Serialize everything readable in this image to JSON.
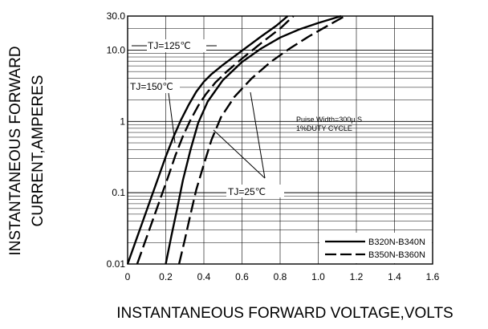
{
  "chart_data": {
    "type": "line",
    "title": "",
    "xlabel": "INSTANTANEOUS FORWARD VOLTAGE,VOLTS",
    "ylabel_lines": [
      "INSTANTANEOUS FORWARD",
      "CURRENT,AMPERES"
    ],
    "xlim": [
      0,
      1.6
    ],
    "ylim": [
      0.01,
      30
    ],
    "yscale": "log",
    "grid": true,
    "x_ticks": [
      "0",
      "0.2",
      "0.4",
      "0.6",
      "0.8",
      "1.0",
      "1.2",
      "1.4",
      "1.6"
    ],
    "y_ticks": [
      "0.01",
      "0.1",
      "1",
      "10.0",
      "30.0"
    ],
    "legend": {
      "placement": "bottom-right",
      "entries": [
        {
          "label": "B320N-B340N",
          "style": "solid"
        },
        {
          "label": "B350N-B360N",
          "style": "dashed"
        }
      ]
    },
    "annotations": {
      "t125": "TJ=125℃",
      "t150": "TJ=150℃",
      "t25": "TJ=25℃",
      "pulse_line1": "Puise Width=300μ S",
      "pulse_line2": "1%DUTY CYCLE"
    },
    "series": [
      {
        "group": "B320N-B340N",
        "condition": "TJ=150℃",
        "style": "solid",
        "points": [
          [
            0.0,
            0.01
          ],
          [
            0.04,
            0.02
          ],
          [
            0.08,
            0.04
          ],
          [
            0.12,
            0.08
          ],
          [
            0.16,
            0.16
          ],
          [
            0.2,
            0.32
          ],
          [
            0.24,
            0.6
          ],
          [
            0.28,
            1.05
          ],
          [
            0.32,
            1.7
          ],
          [
            0.36,
            2.6
          ],
          [
            0.4,
            3.6
          ],
          [
            0.44,
            4.6
          ],
          [
            0.5,
            6.2
          ],
          [
            0.6,
            9.8
          ],
          [
            0.7,
            15.5
          ],
          [
            0.78,
            22.0
          ],
          [
            0.84,
            30.0
          ]
        ]
      },
      {
        "group": "B350N-B360N",
        "condition": "TJ=150℃",
        "style": "dashed",
        "points": [
          [
            0.05,
            0.01
          ],
          [
            0.09,
            0.02
          ],
          [
            0.13,
            0.04
          ],
          [
            0.17,
            0.08
          ],
          [
            0.21,
            0.16
          ],
          [
            0.25,
            0.33
          ],
          [
            0.29,
            0.62
          ],
          [
            0.33,
            1.05
          ],
          [
            0.37,
            1.65
          ],
          [
            0.41,
            2.4
          ],
          [
            0.46,
            3.5
          ],
          [
            0.52,
            5.0
          ],
          [
            0.6,
            7.6
          ],
          [
            0.7,
            12.5
          ],
          [
            0.8,
            20.0
          ],
          [
            0.87,
            30.0
          ]
        ]
      },
      {
        "group": "B320N-B340N",
        "condition": "TJ=25℃",
        "style": "solid",
        "points": [
          [
            0.2,
            0.01
          ],
          [
            0.23,
            0.025
          ],
          [
            0.26,
            0.06
          ],
          [
            0.29,
            0.15
          ],
          [
            0.33,
            0.4
          ],
          [
            0.37,
            0.95
          ],
          [
            0.42,
            1.9
          ],
          [
            0.5,
            3.8
          ],
          [
            0.6,
            6.8
          ],
          [
            0.7,
            10.5
          ],
          [
            0.8,
            15.0
          ],
          [
            0.9,
            19.5
          ],
          [
            1.0,
            24.0
          ],
          [
            1.12,
            30.0
          ]
        ]
      },
      {
        "group": "B350N-B360N",
        "condition": "TJ=25℃",
        "style": "dashed",
        "points": [
          [
            0.27,
            0.01
          ],
          [
            0.3,
            0.022
          ],
          [
            0.33,
            0.05
          ],
          [
            0.36,
            0.11
          ],
          [
            0.4,
            0.25
          ],
          [
            0.44,
            0.55
          ],
          [
            0.49,
            1.15
          ],
          [
            0.56,
            2.2
          ],
          [
            0.65,
            4.0
          ],
          [
            0.75,
            6.8
          ],
          [
            0.85,
            10.5
          ],
          [
            0.95,
            15.5
          ],
          [
            1.05,
            22.0
          ],
          [
            1.14,
            30.0
          ]
        ]
      }
    ]
  }
}
